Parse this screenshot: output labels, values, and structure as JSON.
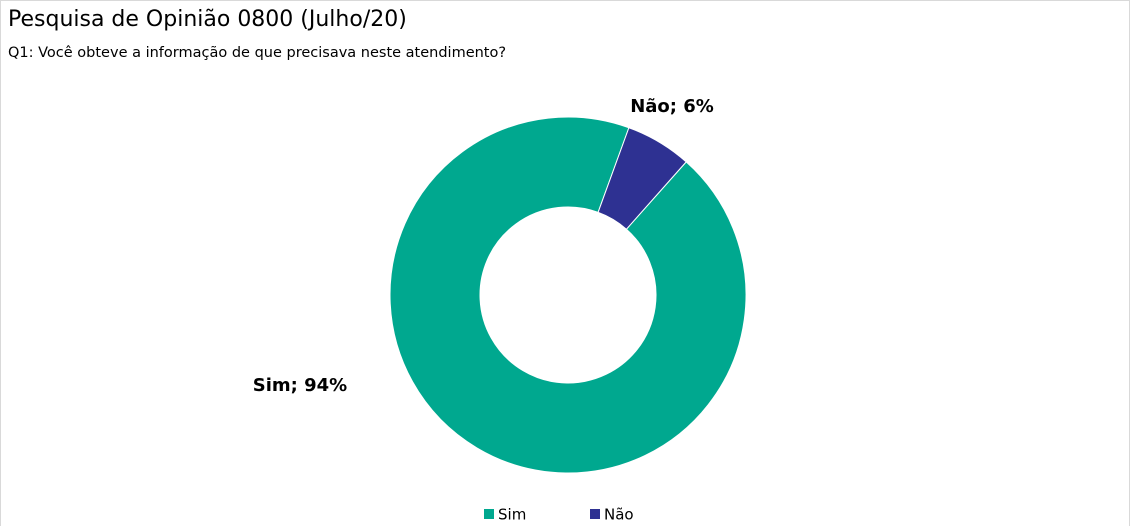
{
  "chart_data": {
    "type": "pie",
    "title": "Pesquisa de Opinião 0800 (Julho/20)",
    "subtitle": "Q1: Você obteve a informação de que precisava neste atendimento?",
    "categories": [
      "Sim",
      "Não"
    ],
    "values": [
      94,
      6
    ],
    "value_labels": [
      "Sim; 94%",
      "Não; 6%"
    ],
    "colors": [
      "#00a88f",
      "#2e3192"
    ],
    "donut": true,
    "legend": "bottom"
  }
}
